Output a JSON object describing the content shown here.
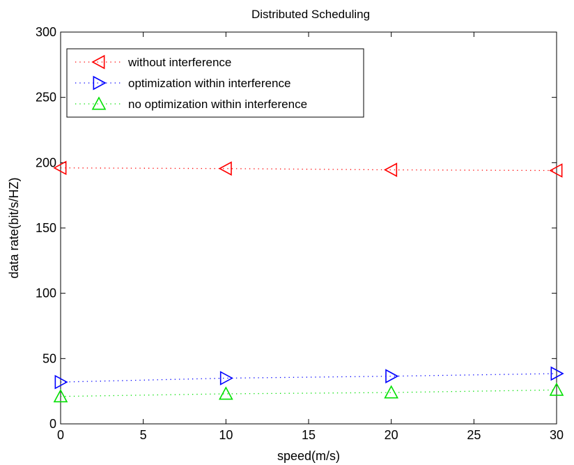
{
  "chart_data": {
    "type": "line",
    "title": "Distributed Scheduling",
    "xlabel": "speed(m/s)",
    "ylabel": "data rate(bit/s/HZ)",
    "xlim": [
      0,
      30
    ],
    "ylim": [
      0,
      300
    ],
    "xticks": [
      0,
      5,
      10,
      15,
      20,
      25,
      30
    ],
    "yticks": [
      0,
      50,
      100,
      150,
      200,
      250,
      300
    ],
    "grid": false,
    "legend_position": "top-left",
    "x": [
      0,
      10,
      20,
      30
    ],
    "series": [
      {
        "name": "without interference",
        "color": "#ff0000",
        "marker": "triangle-left",
        "line_style": "dotted",
        "values": [
          196,
          195.5,
          194.5,
          194
        ]
      },
      {
        "name": "optimization within interference",
        "color": "#0000ff",
        "marker": "triangle-right",
        "line_style": "dotted",
        "values": [
          32,
          35,
          36.5,
          38.5
        ]
      },
      {
        "name": "no optimization within interference",
        "color": "#00e000",
        "marker": "triangle-up",
        "line_style": "dotted",
        "values": [
          21,
          23,
          24,
          26
        ]
      }
    ]
  }
}
